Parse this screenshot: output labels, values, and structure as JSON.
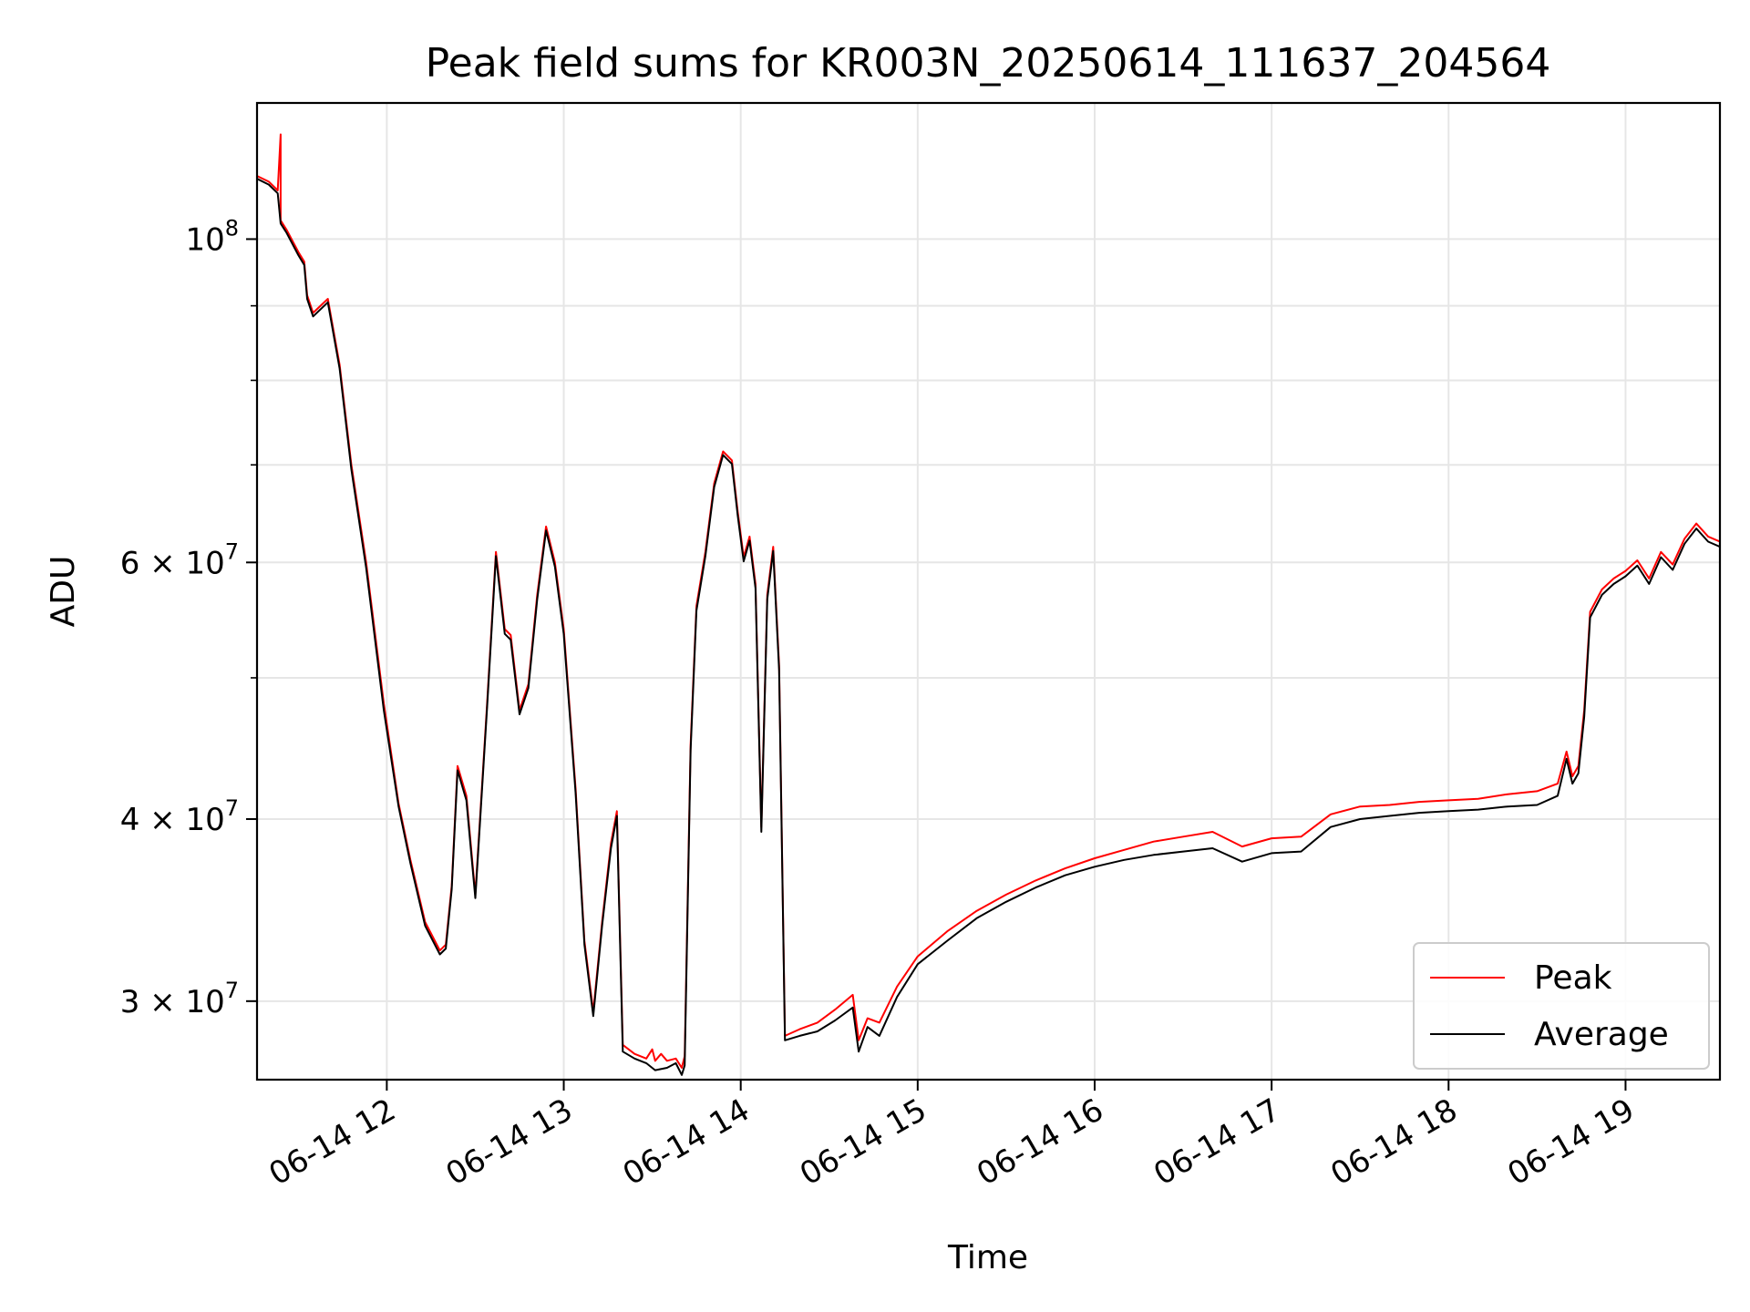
{
  "chart_data": {
    "type": "line",
    "title": "Peak field sums for KR003N_20250614_111637_204564",
    "xlabel": "Time",
    "ylabel": "ADU",
    "yscale": "log",
    "xlim": [
      "2025-06-14 11:16",
      "2025-06-14 19:32"
    ],
    "ylim": [
      26500000,
      124000000
    ],
    "grid": true,
    "legend_position": "lower-right",
    "x_ticks": [
      {
        "value": "2025-06-14 12:00",
        "label": "06-14 12"
      },
      {
        "value": "2025-06-14 13:00",
        "label": "06-14 13"
      },
      {
        "value": "2025-06-14 14:00",
        "label": "06-14 14"
      },
      {
        "value": "2025-06-14 15:00",
        "label": "06-14 15"
      },
      {
        "value": "2025-06-14 16:00",
        "label": "06-14 16"
      },
      {
        "value": "2025-06-14 17:00",
        "label": "06-14 17"
      },
      {
        "value": "2025-06-14 18:00",
        "label": "06-14 18"
      },
      {
        "value": "2025-06-14 19:00",
        "label": "06-14 19"
      }
    ],
    "y_ticks": [
      {
        "value": 30000000,
        "base": "3 × 10",
        "exp": "7"
      },
      {
        "value": 40000000,
        "base": "4 × 10",
        "exp": "7"
      },
      {
        "value": 60000000,
        "base": "6 × 10",
        "exp": "7"
      },
      {
        "value": 100000000,
        "base": "10",
        "exp": "8"
      }
    ],
    "y_minor_ticks": [
      50000000,
      70000000,
      80000000,
      90000000
    ],
    "series": [
      {
        "name": "Peak",
        "color": "#ff0000",
        "points": [
          [
            "2025-06-14 11:16",
            110500000
          ],
          [
            "2025-06-14 11:20",
            109500000
          ],
          [
            "2025-06-14 11:23",
            108000000
          ],
          [
            "2025-06-14 11:24",
            118000000
          ],
          [
            "2025-06-14 11:24",
            103000000
          ],
          [
            "2025-06-14 11:26",
            101500000
          ],
          [
            "2025-06-14 11:30",
            98000000
          ],
          [
            "2025-06-14 11:32",
            96500000
          ],
          [
            "2025-06-14 11:33",
            91500000
          ],
          [
            "2025-06-14 11:35",
            89000000
          ],
          [
            "2025-06-14 11:40",
            91000000
          ],
          [
            "2025-06-14 11:44",
            82000000
          ],
          [
            "2025-06-14 11:48",
            70000000
          ],
          [
            "2025-06-14 11:53",
            60000000
          ],
          [
            "2025-06-14 11:59",
            48000000
          ],
          [
            "2025-06-14 12:04",
            41000000
          ],
          [
            "2025-06-14 12:08",
            37500000
          ],
          [
            "2025-06-14 12:13",
            34000000
          ],
          [
            "2025-06-14 12:18",
            32500000
          ],
          [
            "2025-06-14 12:20",
            32800000
          ],
          [
            "2025-06-14 12:22",
            36000000
          ],
          [
            "2025-06-14 12:24",
            43500000
          ],
          [
            "2025-06-14 12:27",
            41500000
          ],
          [
            "2025-06-14 12:30",
            35500000
          ],
          [
            "2025-06-14 12:34",
            48000000
          ],
          [
            "2025-06-14 12:37",
            61000000
          ],
          [
            "2025-06-14 12:40",
            54000000
          ],
          [
            "2025-06-14 12:42",
            53500000
          ],
          [
            "2025-06-14 12:45",
            47500000
          ],
          [
            "2025-06-14 12:48",
            49500000
          ],
          [
            "2025-06-14 12:51",
            57000000
          ],
          [
            "2025-06-14 12:54",
            63500000
          ],
          [
            "2025-06-14 12:57",
            60000000
          ],
          [
            "2025-06-14 13:00",
            54000000
          ],
          [
            "2025-06-14 13:04",
            42000000
          ],
          [
            "2025-06-14 13:07",
            33000000
          ],
          [
            "2025-06-14 13:10",
            29500000
          ],
          [
            "2025-06-14 13:13",
            34000000
          ],
          [
            "2025-06-14 13:16",
            38500000
          ],
          [
            "2025-06-14 13:18",
            40500000
          ],
          [
            "2025-06-14 13:20",
            28000000
          ],
          [
            "2025-06-14 13:24",
            27600000
          ],
          [
            "2025-06-14 13:28",
            27400000
          ],
          [
            "2025-06-14 13:30",
            27800000
          ],
          [
            "2025-06-14 13:31",
            27300000
          ],
          [
            "2025-06-14 13:33",
            27600000
          ],
          [
            "2025-06-14 13:35",
            27300000
          ],
          [
            "2025-06-14 13:38",
            27400000
          ],
          [
            "2025-06-14 13:40",
            27000000
          ],
          [
            "2025-06-14 13:41",
            27500000
          ],
          [
            "2025-06-14 13:43",
            45000000
          ],
          [
            "2025-06-14 13:45",
            56000000
          ],
          [
            "2025-06-14 13:48",
            61000000
          ],
          [
            "2025-06-14 13:51",
            68000000
          ],
          [
            "2025-06-14 13:54",
            71500000
          ],
          [
            "2025-06-14 13:57",
            70500000
          ],
          [
            "2025-06-14 13:59",
            65000000
          ],
          [
            "2025-06-14 14:01",
            60500000
          ],
          [
            "2025-06-14 14:03",
            62500000
          ],
          [
            "2025-06-14 14:05",
            58000000
          ],
          [
            "2025-06-14 14:07",
            39500000
          ],
          [
            "2025-06-14 14:09",
            57000000
          ],
          [
            "2025-06-14 14:11",
            61500000
          ],
          [
            "2025-06-14 14:13",
            51000000
          ],
          [
            "2025-06-14 14:15",
            28400000
          ],
          [
            "2025-06-14 14:20",
            28700000
          ],
          [
            "2025-06-14 14:26",
            29000000
          ],
          [
            "2025-06-14 14:32",
            29600000
          ],
          [
            "2025-06-14 14:38",
            30300000
          ],
          [
            "2025-06-14 14:40",
            28200000
          ],
          [
            "2025-06-14 14:43",
            29200000
          ],
          [
            "2025-06-14 14:47",
            29000000
          ],
          [
            "2025-06-14 14:53",
            30700000
          ],
          [
            "2025-06-14 15:00",
            32200000
          ],
          [
            "2025-06-14 15:10",
            33500000
          ],
          [
            "2025-06-14 15:20",
            34600000
          ],
          [
            "2025-06-14 15:30",
            35500000
          ],
          [
            "2025-06-14 15:40",
            36300000
          ],
          [
            "2025-06-14 15:50",
            37000000
          ],
          [
            "2025-06-14 16:00",
            37600000
          ],
          [
            "2025-06-14 16:10",
            38100000
          ],
          [
            "2025-06-14 16:20",
            38600000
          ],
          [
            "2025-06-14 16:30",
            38900000
          ],
          [
            "2025-06-14 16:40",
            39200000
          ],
          [
            "2025-06-14 16:50",
            38300000
          ],
          [
            "2025-06-14 17:00",
            38800000
          ],
          [
            "2025-06-14 17:10",
            38900000
          ],
          [
            "2025-06-14 17:20",
            40300000
          ],
          [
            "2025-06-14 17:30",
            40800000
          ],
          [
            "2025-06-14 17:40",
            40900000
          ],
          [
            "2025-06-14 17:50",
            41100000
          ],
          [
            "2025-06-14 18:00",
            41200000
          ],
          [
            "2025-06-14 18:10",
            41300000
          ],
          [
            "2025-06-14 18:20",
            41600000
          ],
          [
            "2025-06-14 18:30",
            41800000
          ],
          [
            "2025-06-14 18:37",
            42300000
          ],
          [
            "2025-06-14 18:40",
            44500000
          ],
          [
            "2025-06-14 18:42",
            42800000
          ],
          [
            "2025-06-14 18:44",
            43500000
          ],
          [
            "2025-06-14 18:46",
            47500000
          ],
          [
            "2025-06-14 18:48",
            55500000
          ],
          [
            "2025-06-14 18:52",
            57500000
          ],
          [
            "2025-06-14 18:56",
            58500000
          ],
          [
            "2025-06-14 19:00",
            59200000
          ],
          [
            "2025-06-14 19:04",
            60200000
          ],
          [
            "2025-06-14 19:08",
            58500000
          ],
          [
            "2025-06-14 19:12",
            61000000
          ],
          [
            "2025-06-14 19:16",
            59800000
          ],
          [
            "2025-06-14 19:20",
            62300000
          ],
          [
            "2025-06-14 19:24",
            63800000
          ],
          [
            "2025-06-14 19:28",
            62500000
          ],
          [
            "2025-06-14 19:32",
            62000000
          ]
        ]
      },
      {
        "name": "Average",
        "color": "#000000",
        "points": [
          [
            "2025-06-14 11:16",
            110000000
          ],
          [
            "2025-06-14 11:20",
            109000000
          ],
          [
            "2025-06-14 11:23",
            107500000
          ],
          [
            "2025-06-14 11:24",
            102500000
          ],
          [
            "2025-06-14 11:26",
            101000000
          ],
          [
            "2025-06-14 11:30",
            97500000
          ],
          [
            "2025-06-14 11:32",
            96000000
          ],
          [
            "2025-06-14 11:33",
            91000000
          ],
          [
            "2025-06-14 11:35",
            88500000
          ],
          [
            "2025-06-14 11:40",
            90500000
          ],
          [
            "2025-06-14 11:44",
            81500000
          ],
          [
            "2025-06-14 11:48",
            69500000
          ],
          [
            "2025-06-14 11:53",
            59500000
          ],
          [
            "2025-06-14 11:59",
            47500000
          ],
          [
            "2025-06-14 12:04",
            40800000
          ],
          [
            "2025-06-14 12:08",
            37300000
          ],
          [
            "2025-06-14 12:13",
            33800000
          ],
          [
            "2025-06-14 12:18",
            32300000
          ],
          [
            "2025-06-14 12:20",
            32600000
          ],
          [
            "2025-06-14 12:22",
            35800000
          ],
          [
            "2025-06-14 12:24",
            43200000
          ],
          [
            "2025-06-14 12:27",
            41200000
          ],
          [
            "2025-06-14 12:30",
            35300000
          ],
          [
            "2025-06-14 12:34",
            47700000
          ],
          [
            "2025-06-14 12:37",
            60600000
          ],
          [
            "2025-06-14 12:40",
            53600000
          ],
          [
            "2025-06-14 12:42",
            53100000
          ],
          [
            "2025-06-14 12:45",
            47200000
          ],
          [
            "2025-06-14 12:48",
            49200000
          ],
          [
            "2025-06-14 12:51",
            56600000
          ],
          [
            "2025-06-14 12:54",
            63100000
          ],
          [
            "2025-06-14 12:57",
            59600000
          ],
          [
            "2025-06-14 13:00",
            53600000
          ],
          [
            "2025-06-14 13:04",
            41700000
          ],
          [
            "2025-06-14 13:07",
            32800000
          ],
          [
            "2025-06-14 13:10",
            29300000
          ],
          [
            "2025-06-14 13:13",
            33800000
          ],
          [
            "2025-06-14 13:16",
            38200000
          ],
          [
            "2025-06-14 13:18",
            40200000
          ],
          [
            "2025-06-14 13:20",
            27700000
          ],
          [
            "2025-06-14 13:24",
            27400000
          ],
          [
            "2025-06-14 13:28",
            27200000
          ],
          [
            "2025-06-14 13:31",
            26900000
          ],
          [
            "2025-06-14 13:35",
            27000000
          ],
          [
            "2025-06-14 13:38",
            27200000
          ],
          [
            "2025-06-14 13:40",
            26700000
          ],
          [
            "2025-06-14 13:41",
            27100000
          ],
          [
            "2025-06-14 13:43",
            44600000
          ],
          [
            "2025-06-14 13:45",
            55600000
          ],
          [
            "2025-06-14 13:48",
            60600000
          ],
          [
            "2025-06-14 13:51",
            67600000
          ],
          [
            "2025-06-14 13:54",
            71100000
          ],
          [
            "2025-06-14 13:57",
            70100000
          ],
          [
            "2025-06-14 13:59",
            64600000
          ],
          [
            "2025-06-14 14:01",
            60100000
          ],
          [
            "2025-06-14 14:03",
            62100000
          ],
          [
            "2025-06-14 14:05",
            57600000
          ],
          [
            "2025-06-14 14:07",
            39200000
          ],
          [
            "2025-06-14 14:09",
            56600000
          ],
          [
            "2025-06-14 14:11",
            61100000
          ],
          [
            "2025-06-14 14:13",
            50600000
          ],
          [
            "2025-06-14 14:15",
            28200000
          ],
          [
            "2025-06-14 14:20",
            28400000
          ],
          [
            "2025-06-14 14:26",
            28600000
          ],
          [
            "2025-06-14 14:32",
            29100000
          ],
          [
            "2025-06-14 14:38",
            29700000
          ],
          [
            "2025-06-14 14:40",
            27700000
          ],
          [
            "2025-06-14 14:43",
            28800000
          ],
          [
            "2025-06-14 14:47",
            28400000
          ],
          [
            "2025-06-14 14:53",
            30200000
          ],
          [
            "2025-06-14 15:00",
            31800000
          ],
          [
            "2025-06-14 15:10",
            33000000
          ],
          [
            "2025-06-14 15:20",
            34200000
          ],
          [
            "2025-06-14 15:30",
            35100000
          ],
          [
            "2025-06-14 15:40",
            35900000
          ],
          [
            "2025-06-14 15:50",
            36600000
          ],
          [
            "2025-06-14 16:00",
            37100000
          ],
          [
            "2025-06-14 16:10",
            37500000
          ],
          [
            "2025-06-14 16:20",
            37800000
          ],
          [
            "2025-06-14 16:30",
            38000000
          ],
          [
            "2025-06-14 16:40",
            38200000
          ],
          [
            "2025-06-14 16:50",
            37400000
          ],
          [
            "2025-06-14 17:00",
            37900000
          ],
          [
            "2025-06-14 17:10",
            38000000
          ],
          [
            "2025-06-14 17:20",
            39500000
          ],
          [
            "2025-06-14 17:30",
            40000000
          ],
          [
            "2025-06-14 17:40",
            40200000
          ],
          [
            "2025-06-14 17:50",
            40400000
          ],
          [
            "2025-06-14 18:00",
            40500000
          ],
          [
            "2025-06-14 18:10",
            40600000
          ],
          [
            "2025-06-14 18:20",
            40800000
          ],
          [
            "2025-06-14 18:30",
            40900000
          ],
          [
            "2025-06-14 18:37",
            41500000
          ],
          [
            "2025-06-14 18:40",
            44000000
          ],
          [
            "2025-06-14 18:42",
            42300000
          ],
          [
            "2025-06-14 18:44",
            43000000
          ],
          [
            "2025-06-14 18:46",
            47000000
          ],
          [
            "2025-06-14 18:48",
            55000000
          ],
          [
            "2025-06-14 18:52",
            57000000
          ],
          [
            "2025-06-14 18:56",
            58000000
          ],
          [
            "2025-06-14 19:00",
            58700000
          ],
          [
            "2025-06-14 19:04",
            59700000
          ],
          [
            "2025-06-14 19:08",
            58000000
          ],
          [
            "2025-06-14 19:12",
            60500000
          ],
          [
            "2025-06-14 19:16",
            59300000
          ],
          [
            "2025-06-14 19:20",
            61800000
          ],
          [
            "2025-06-14 19:24",
            63300000
          ],
          [
            "2025-06-14 19:28",
            62000000
          ],
          [
            "2025-06-14 19:32",
            61500000
          ]
        ]
      }
    ]
  }
}
